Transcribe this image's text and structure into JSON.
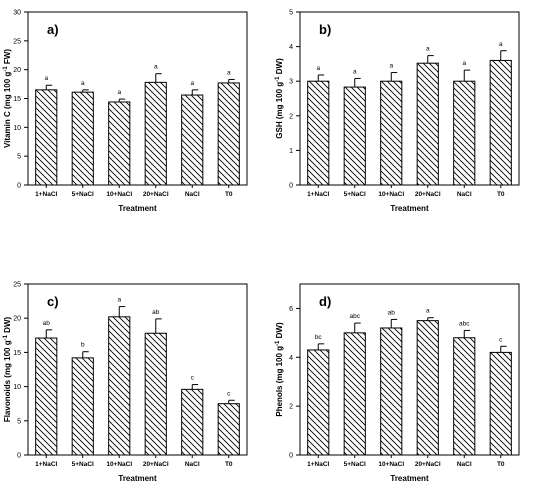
{
  "chart_data": [
    {
      "type": "bar",
      "panel_label": "a)",
      "categories": [
        "1+NaCl",
        "5+NaCl",
        "10+NaCl",
        "20+NaCl",
        "NaCl",
        "T0"
      ],
      "values": [
        16.5,
        16.1,
        14.4,
        17.8,
        15.6,
        17.7
      ],
      "errors": [
        0.8,
        0.4,
        0.5,
        1.5,
        0.9,
        0.6
      ],
      "letters": [
        "a",
        "a",
        "a",
        "a",
        "a",
        "a"
      ],
      "xlabel": "Treatment",
      "ylabel": "Vitamin C (mg 100 g",
      "ylabel_sup": "-1",
      "ylabel_end": " FW)",
      "ylim": [
        0,
        30
      ],
      "yticks": [
        "0",
        "5",
        "10",
        "15",
        "20",
        "25",
        "30"
      ],
      "grid": false,
      "bar_fill": "diagonal-hatch"
    },
    {
      "type": "bar",
      "panel_label": "b)",
      "categories": [
        "1+NaCl",
        "5+NaCl",
        "10+NaCl",
        "20+NaCl",
        "NaCl",
        "T0"
      ],
      "values": [
        3.0,
        2.83,
        3.0,
        3.52,
        3.0,
        3.6
      ],
      "errors": [
        0.18,
        0.25,
        0.25,
        0.22,
        0.32,
        0.28
      ],
      "letters": [
        "a",
        "a",
        "a",
        "a",
        "a",
        "a"
      ],
      "xlabel": "Treatment",
      "ylabel": "GSH (mg 100 g",
      "ylabel_sup": "-1",
      "ylabel_end": " DW)",
      "ylim": [
        0,
        5
      ],
      "yticks": [
        "0",
        "1",
        "2",
        "3",
        "4",
        "5"
      ],
      "grid": false,
      "bar_fill": "diagonal-hatch"
    },
    {
      "type": "bar",
      "panel_label": "c)",
      "categories": [
        "1+NaCl",
        "5+NaCl",
        "10+NaCl",
        "20+NaCl",
        "NaCl",
        "T0"
      ],
      "values": [
        17.1,
        14.2,
        20.2,
        17.8,
        9.6,
        7.5
      ],
      "errors": [
        1.2,
        0.9,
        1.5,
        2.1,
        0.7,
        0.5
      ],
      "letters": [
        "ab",
        "b",
        "a",
        "ab",
        "c",
        "c"
      ],
      "xlabel": "Treatment",
      "ylabel": "Flavonoids (mg 100 g",
      "ylabel_sup": "-1",
      "ylabel_end": " DW)",
      "ylim": [
        0,
        25
      ],
      "yticks": [
        "0",
        "5",
        "10",
        "15",
        "20",
        "25"
      ],
      "grid": false,
      "bar_fill": "diagonal-hatch"
    },
    {
      "type": "bar",
      "panel_label": "d)",
      "categories": [
        "1+NaCl",
        "5+NaCl",
        "10+NaCl",
        "20+NaCl",
        "NaCl",
        "T0"
      ],
      "values": [
        4.3,
        5.0,
        5.2,
        5.5,
        4.8,
        4.2
      ],
      "errors": [
        0.25,
        0.4,
        0.35,
        0.12,
        0.3,
        0.25
      ],
      "letters": [
        "bc",
        "abc",
        "ab",
        "a",
        "abc",
        "c"
      ],
      "xlabel": "Treatment",
      "ylabel": "Phenols (mg 100 g",
      "ylabel_sup": "-1",
      "ylabel_end": " DW)",
      "ylim": [
        0,
        7
      ],
      "yticks": [
        "0",
        "2",
        "4",
        "6"
      ],
      "ytick_values": [
        0,
        2,
        4,
        6
      ],
      "grid": false,
      "bar_fill": "diagonal-hatch"
    }
  ]
}
